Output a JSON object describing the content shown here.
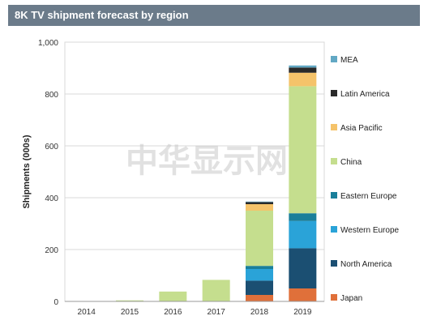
{
  "header": {
    "title": "8K TV shipment forecast by region"
  },
  "watermark": {
    "text": "中华显示网"
  },
  "chart_data": {
    "type": "bar",
    "stacked": true,
    "title": "8K TV shipment forecast by region",
    "ylabel": "Shipments (000s)",
    "xlabel": "",
    "ylim": [
      0,
      1000
    ],
    "yticks": [
      0,
      200,
      400,
      600,
      800,
      1000
    ],
    "ytick_labels": [
      "0",
      "200",
      "400",
      "600",
      "800",
      "1,000"
    ],
    "grid": true,
    "legend_position": "right",
    "categories": [
      "2014",
      "2015",
      "2016",
      "2017",
      "2018",
      "2019"
    ],
    "series": [
      {
        "name": "Japan",
        "color": "#e0703a",
        "values": [
          0,
          0,
          0,
          0,
          25,
          50
        ]
      },
      {
        "name": "North America",
        "color": "#1b4f72",
        "values": [
          0,
          0,
          0,
          0,
          55,
          155
        ]
      },
      {
        "name": "Western Europe",
        "color": "#2aa3d8",
        "values": [
          0,
          0,
          0,
          0,
          45,
          105
        ]
      },
      {
        "name": "Eastern Europe",
        "color": "#1a7f9a",
        "values": [
          0,
          0,
          0,
          0,
          12,
          30
        ]
      },
      {
        "name": "China",
        "color": "#c5de8e",
        "values": [
          0,
          4,
          38,
          83,
          213,
          490
        ]
      },
      {
        "name": "Asia Pacific",
        "color": "#f5c36a",
        "values": [
          0,
          0,
          0,
          0,
          25,
          52
        ]
      },
      {
        "name": "Latin America",
        "color": "#2a2a2a",
        "values": [
          0,
          0,
          0,
          0,
          8,
          20
        ]
      },
      {
        "name": "MEA",
        "color": "#62a8c4",
        "values": [
          0,
          0,
          0,
          0,
          2,
          8
        ]
      }
    ]
  }
}
